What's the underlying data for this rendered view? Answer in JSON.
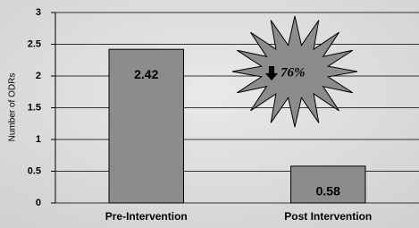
{
  "chart_data": {
    "type": "bar",
    "y_label": "Number of ODRs",
    "categories": [
      "Pre-Intervention",
      "Post Intervention"
    ],
    "values": [
      2.42,
      0.58
    ],
    "color": "#8c8c8c",
    "ylim": [
      0,
      3
    ],
    "yticks": [
      0,
      0.5,
      1,
      1.5,
      2,
      2.5,
      3
    ],
    "grid": true,
    "annotation": "76%"
  }
}
